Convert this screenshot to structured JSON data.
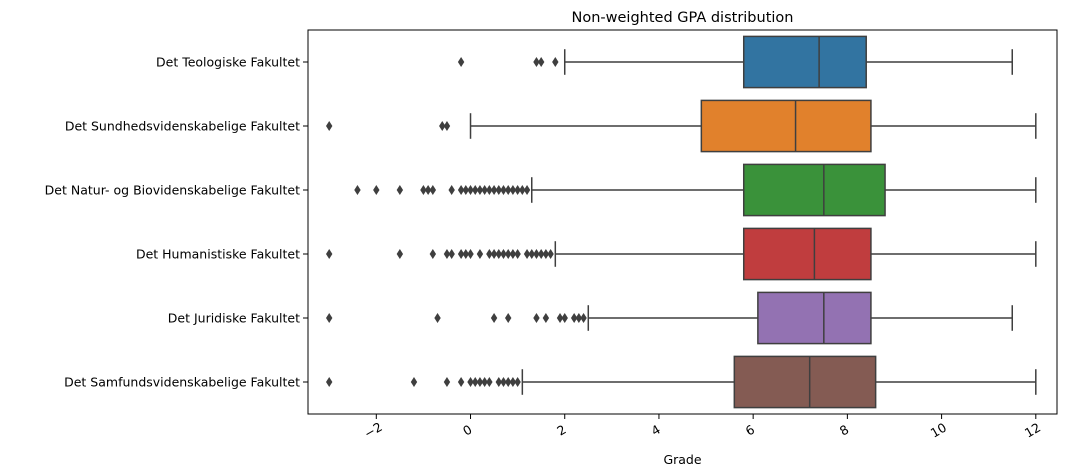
{
  "chart_data": {
    "type": "boxplot",
    "orientation": "horizontal",
    "title": "Non-weighted GPA distribution",
    "xlabel": "Grade",
    "ylabel": "",
    "xlim": [
      -3.45,
      12.45
    ],
    "xticks": [
      -2,
      0,
      2,
      4,
      6,
      8,
      10,
      12
    ],
    "xtick_labels": [
      "−2",
      "0",
      "2",
      "4",
      "6",
      "8",
      "10",
      "12"
    ],
    "grid": false,
    "legend": "none",
    "series": [
      {
        "category": "Det Teologiske Fakultet",
        "color": "#3274a1",
        "whisker_low": 2.0,
        "q1": 5.8,
        "median": 7.4,
        "q3": 8.4,
        "whisker_high": 11.5,
        "outliers": [
          -0.2,
          1.4,
          1.5,
          1.8
        ]
      },
      {
        "category": "Det Sundhedsvidenskabelige Fakultet",
        "color": "#e1812c",
        "whisker_low": 0.0,
        "q1": 4.9,
        "median": 6.9,
        "q3": 8.5,
        "whisker_high": 12.0,
        "outliers": [
          -3.0,
          -0.6,
          -0.5
        ]
      },
      {
        "category": "Det Natur- og Biovidenskabelige Fakultet",
        "color": "#3a923a",
        "whisker_low": 1.3,
        "q1": 5.8,
        "median": 7.5,
        "q3": 8.8,
        "whisker_high": 12.0,
        "outliers": [
          -2.4,
          -2.0,
          -1.5,
          -1.0,
          -0.9,
          -0.8,
          -0.4,
          -0.2,
          -0.1,
          0.0,
          0.1,
          0.2,
          0.3,
          0.4,
          0.5,
          0.6,
          0.7,
          0.8,
          0.9,
          1.0,
          1.1,
          1.2
        ]
      },
      {
        "category": "Det Humanistiske Fakultet",
        "color": "#c03d3e",
        "whisker_low": 1.8,
        "q1": 5.8,
        "median": 7.3,
        "q3": 8.5,
        "whisker_high": 12.0,
        "outliers": [
          -3.0,
          -1.5,
          -0.8,
          -0.5,
          -0.4,
          -0.2,
          -0.1,
          0.0,
          0.2,
          0.4,
          0.5,
          0.6,
          0.7,
          0.8,
          0.9,
          1.0,
          1.2,
          1.3,
          1.4,
          1.5,
          1.6,
          1.7
        ]
      },
      {
        "category": "Det Juridiske Fakultet",
        "color": "#9372b2",
        "whisker_low": 2.5,
        "q1": 6.1,
        "median": 7.5,
        "q3": 8.5,
        "whisker_high": 11.5,
        "outliers": [
          -3.0,
          -0.7,
          0.5,
          0.8,
          1.4,
          1.6,
          1.9,
          2.0,
          2.2,
          2.3,
          2.4
        ]
      },
      {
        "category": "Det Samfundsvidenskabelige Fakultet",
        "color": "#845b53",
        "whisker_low": 1.1,
        "q1": 5.6,
        "median": 7.2,
        "q3": 8.6,
        "whisker_high": 12.0,
        "outliers": [
          -3.0,
          -1.2,
          -0.5,
          -0.2,
          0.0,
          0.1,
          0.2,
          0.3,
          0.4,
          0.6,
          0.7,
          0.8,
          0.9,
          1.0
        ]
      }
    ]
  }
}
